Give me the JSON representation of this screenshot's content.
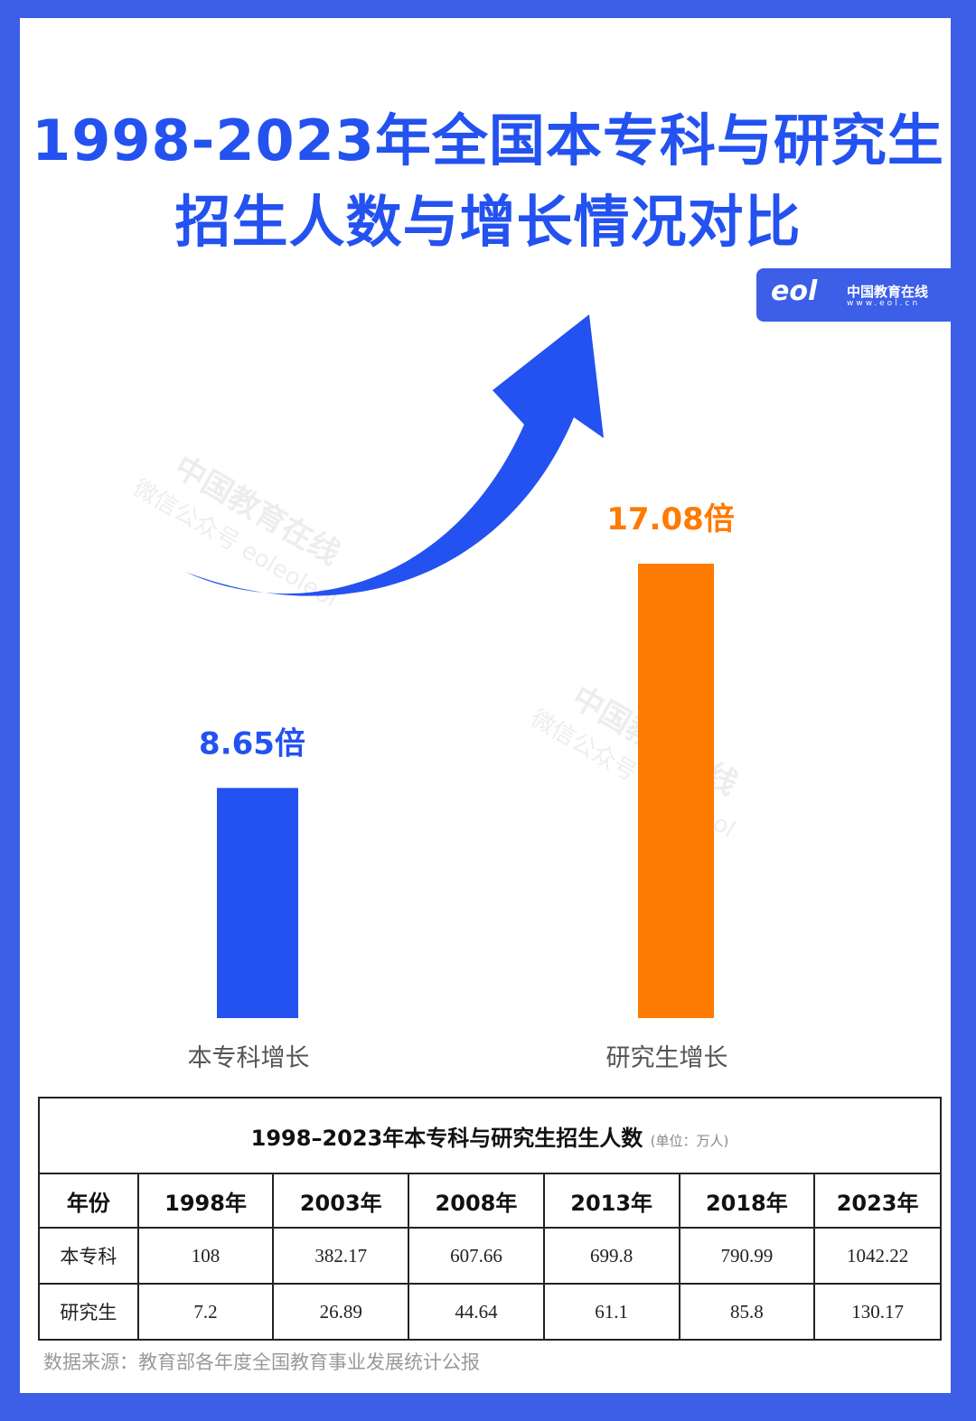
{
  "title_line1": "1998-2023年全国本专科与研究生",
  "title_line2": "招生人数与增长情况对比",
  "logo": {
    "mark": "eol",
    "name": "中国教育在线",
    "url": "www.eol.cn"
  },
  "watermark": {
    "line1": "中国教育在线",
    "line2": "微信公众号 eoleoleol"
  },
  "colors": {
    "frame": "#3d5ee6",
    "undergrad": "#2352f0",
    "graduate": "#ff7a00"
  },
  "chart_data": {
    "type": "bar",
    "categories": [
      "本专科增长",
      "研究生增长"
    ],
    "values": [
      8.65,
      17.08
    ],
    "data_labels": [
      "8.65倍",
      "17.08倍"
    ],
    "colors": [
      "#2352f0",
      "#ff7a00"
    ],
    "ylim": [
      0,
      17.08
    ],
    "grid": false,
    "decoration": "upward-arrow"
  },
  "table": {
    "caption": "1998–2023年本专科与研究生招生人数",
    "unit": "(单位：万人)",
    "headers": [
      "年份",
      "1998年",
      "2003年",
      "2008年",
      "2013年",
      "2018年",
      "2023年"
    ],
    "rows": [
      [
        "本专科",
        "108",
        "382.17",
        "607.66",
        "699.8",
        "790.99",
        "1042.22"
      ],
      [
        "研究生",
        "7.2",
        "26.89",
        "44.64",
        "61.1",
        "85.8",
        "130.17"
      ]
    ]
  },
  "source": "数据来源：教育部各年度全国教育事业发展统计公报"
}
